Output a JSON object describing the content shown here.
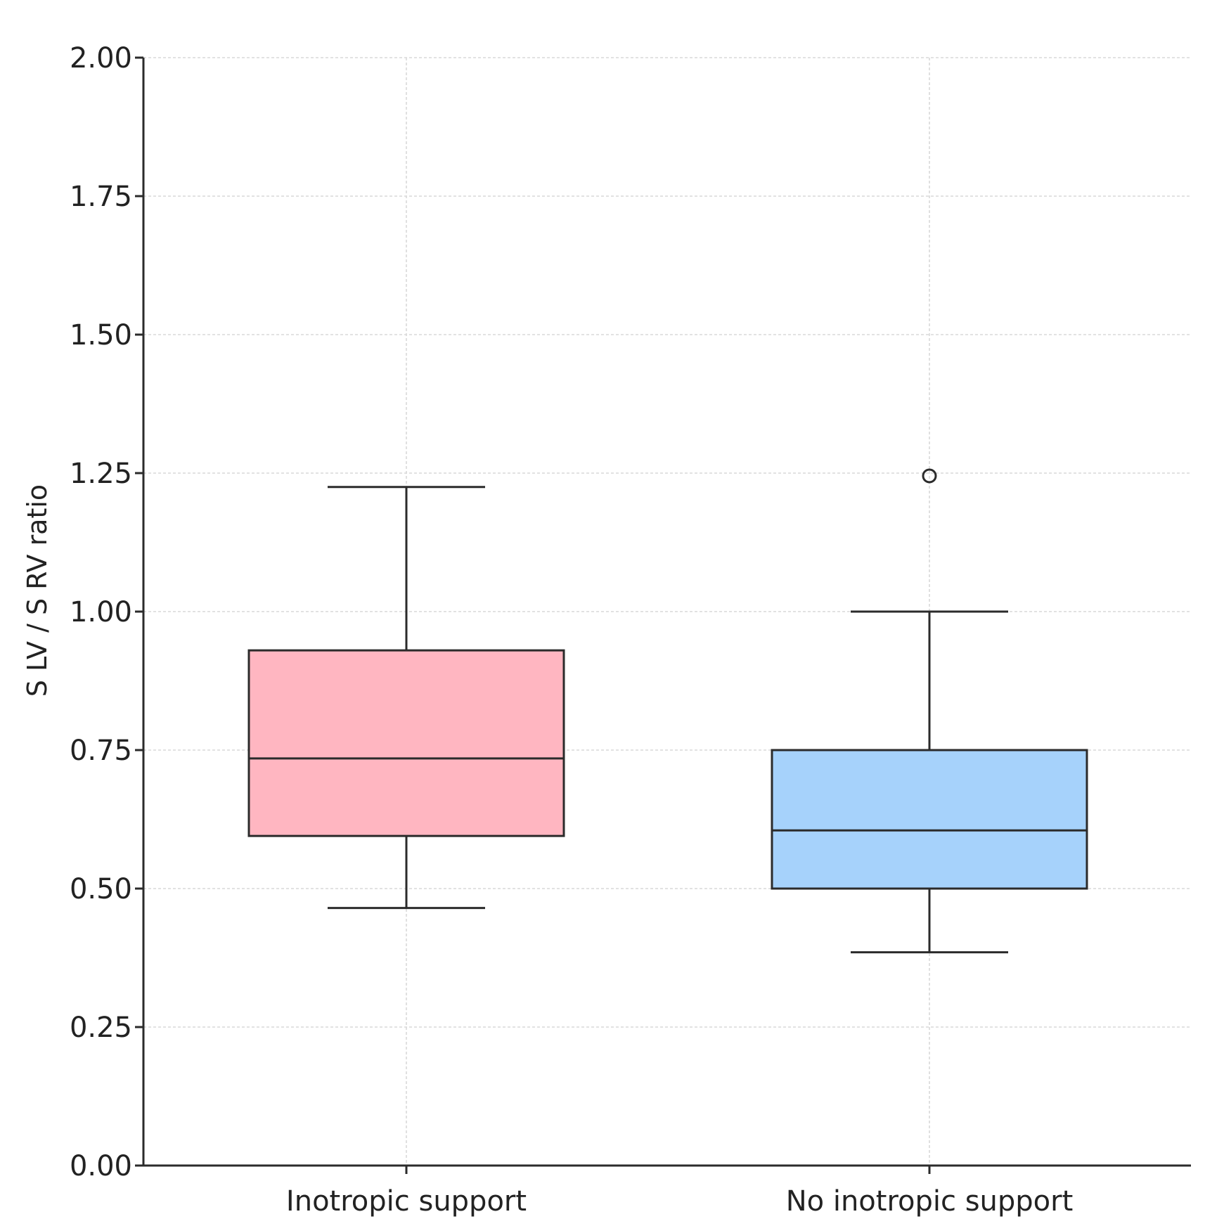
{
  "chart_data": {
    "type": "box",
    "title": "",
    "xlabel": "",
    "ylabel": "S LV / S RV ratio",
    "ylim": [
      0,
      2
    ],
    "yticks": [
      "0.00",
      "0.25",
      "0.50",
      "0.75",
      "1.00",
      "1.25",
      "1.50",
      "1.75",
      "2.00"
    ],
    "grid": true,
    "categories": [
      "Inotropic support",
      "No inotropic support"
    ],
    "boxes": [
      {
        "name": "Inotropic support",
        "whisker_low": 0.465,
        "q1": 0.595,
        "median": 0.735,
        "q3": 0.93,
        "whisker_high": 1.225,
        "outliers": [],
        "color": "#ffb6c1"
      },
      {
        "name": "No inotropic support",
        "whisker_low": 0.385,
        "q1": 0.5,
        "median": 0.605,
        "q3": 0.75,
        "whisker_high": 1.0,
        "outliers": [
          1.245
        ],
        "color": "#a6d2fb"
      }
    ]
  }
}
